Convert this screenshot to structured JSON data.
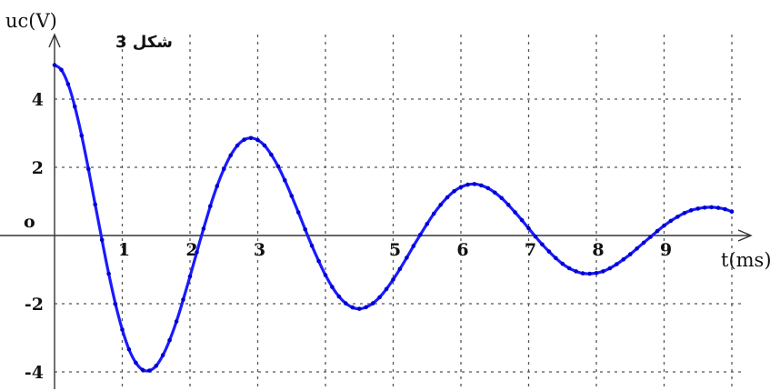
{
  "chart_data": {
    "type": "line",
    "figure_label": "شكل 3",
    "ylabel": "uc(V)",
    "xlabel": "t(ms)",
    "origin_label": "o",
    "xlim": [
      0,
      10
    ],
    "ylim": [
      -4.5,
      5.5
    ],
    "x_ticks": [
      {
        "value": 1,
        "label": "1"
      },
      {
        "value": 2,
        "label": "2"
      },
      {
        "value": 3,
        "label": "3"
      },
      {
        "value": 5,
        "label": "5"
      },
      {
        "value": 6,
        "label": "6"
      },
      {
        "value": 7,
        "label": "7"
      },
      {
        "value": 8,
        "label": "8"
      },
      {
        "value": 9,
        "label": "9"
      }
    ],
    "y_ticks": [
      {
        "value": 4,
        "label": "4"
      },
      {
        "value": 2,
        "label": "2"
      },
      {
        "value": -2,
        "label": "-2"
      },
      {
        "value": -4,
        "label": "-4"
      }
    ],
    "grid": true,
    "series": [
      {
        "color": "#1a1aff",
        "x": [
          0,
          0.1,
          0.2,
          0.3,
          0.4,
          0.5,
          0.6,
          0.7,
          0.8,
          0.9,
          1.0,
          1.1,
          1.2,
          1.3,
          1.4,
          1.5,
          1.6,
          1.7,
          1.8,
          1.9,
          2.0,
          2.1,
          2.2,
          2.3,
          2.4,
          2.5,
          2.6,
          2.7,
          2.8,
          2.9,
          3.0,
          3.1,
          3.2,
          3.3,
          3.4,
          3.5,
          3.6,
          3.7,
          3.8,
          3.9,
          4.0,
          4.1,
          4.2,
          4.3,
          4.4,
          4.5,
          4.6,
          4.7,
          4.8,
          4.9,
          5.0,
          5.1,
          5.2,
          5.3,
          5.4,
          5.5,
          5.6,
          5.7,
          5.8,
          5.9,
          6.0,
          6.1,
          6.2,
          6.3,
          6.4,
          6.5,
          6.6,
          6.7,
          6.8,
          6.9,
          7.0,
          7.1,
          7.2,
          7.3,
          7.4,
          7.5,
          7.6,
          7.7,
          7.8,
          7.9,
          8.0,
          8.1,
          8.2,
          8.3,
          8.4,
          8.5,
          8.6,
          8.7,
          8.8,
          8.9,
          9.0,
          9.1,
          9.2,
          9.3,
          9.4,
          9.5,
          9.6,
          9.7,
          9.8,
          9.9,
          10.0
        ],
        "y": [
          5.0,
          4.86,
          4.44,
          3.78,
          2.93,
          1.95,
          0.91,
          -0.13,
          -1.12,
          -2.01,
          -2.76,
          -3.34,
          -3.73,
          -3.94,
          -3.96,
          -3.82,
          -3.51,
          -3.07,
          -2.52,
          -1.88,
          -1.2,
          -0.49,
          0.2,
          0.86,
          1.45,
          1.95,
          2.35,
          2.64,
          2.81,
          2.86,
          2.8,
          2.64,
          2.37,
          2.03,
          1.62,
          1.16,
          0.68,
          0.18,
          -0.3,
          -0.75,
          -1.16,
          -1.51,
          -1.79,
          -1.99,
          -2.11,
          -2.15,
          -2.1,
          -1.99,
          -1.81,
          -1.57,
          -1.29,
          -0.98,
          -0.65,
          -0.31,
          0.02,
          0.34,
          0.64,
          0.9,
          1.12,
          1.3,
          1.42,
          1.49,
          1.51,
          1.47,
          1.39,
          1.26,
          1.1,
          0.9,
          0.68,
          0.45,
          0.21,
          -0.03,
          -0.26,
          -0.47,
          -0.66,
          -0.83,
          -0.96,
          -1.05,
          -1.11,
          -1.12,
          -1.1,
          -1.05,
          -0.96,
          -0.84,
          -0.7,
          -0.55,
          -0.38,
          -0.21,
          -0.04,
          0.13,
          0.29,
          0.43,
          0.55,
          0.66,
          0.74,
          0.79,
          0.82,
          0.83,
          0.81,
          0.77,
          0.7
        ]
      }
    ]
  }
}
